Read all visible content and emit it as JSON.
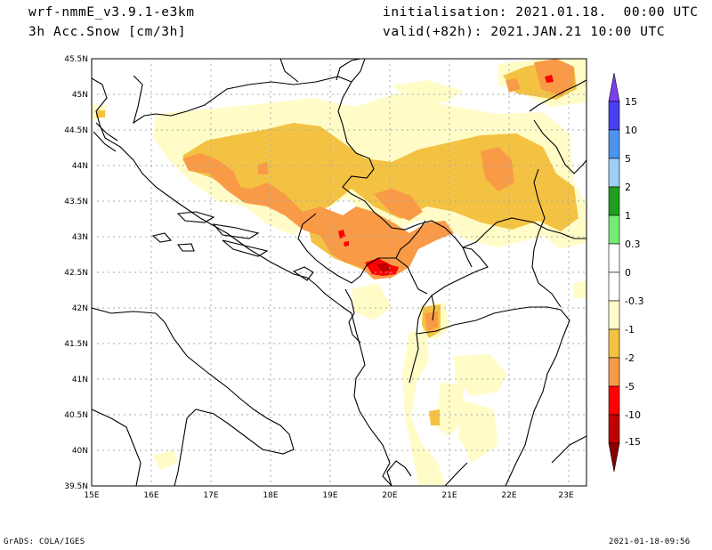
{
  "header": {
    "model": "wrf-nmmE_v3.9.1-e3km",
    "field": "3h Acc.Snow [cm/3h]",
    "init": "initialisation: 2021.01.18.  00:00 UTC",
    "valid": "valid(+82h): 2021.JAN.21 10:00 UTC"
  },
  "map": {
    "lon_labels": [
      "15E",
      "16E",
      "17E",
      "18E",
      "19E",
      "20E",
      "21E",
      "22E",
      "23E"
    ],
    "lat_labels": [
      "45.5N",
      "45N",
      "44.5N",
      "44N",
      "43.5N",
      "43N",
      "42.5N",
      "42N",
      "41.5N",
      "41N",
      "40.5N",
      "40N",
      "39.5N"
    ]
  },
  "colorbar": {
    "labels": [
      "15",
      "10",
      "5",
      "2",
      "1",
      "0.3",
      "0",
      "-0.3",
      "-1",
      "-2",
      "-5",
      "-10",
      "-15"
    ],
    "colors": [
      "#7a3ff0",
      "#4a3ff0",
      "#4a94f0",
      "#9cd0f5",
      "#1f9e1f",
      "#74ec74",
      "#ffffff",
      "#ffffff",
      "#fffcc8",
      "#f4c242",
      "#f99a47",
      "#ff0000",
      "#c00000",
      "#8b0000"
    ]
  },
  "footer": {
    "left": "GrADS: COLA/IGES",
    "right": "2021-01-18-09:56"
  }
}
